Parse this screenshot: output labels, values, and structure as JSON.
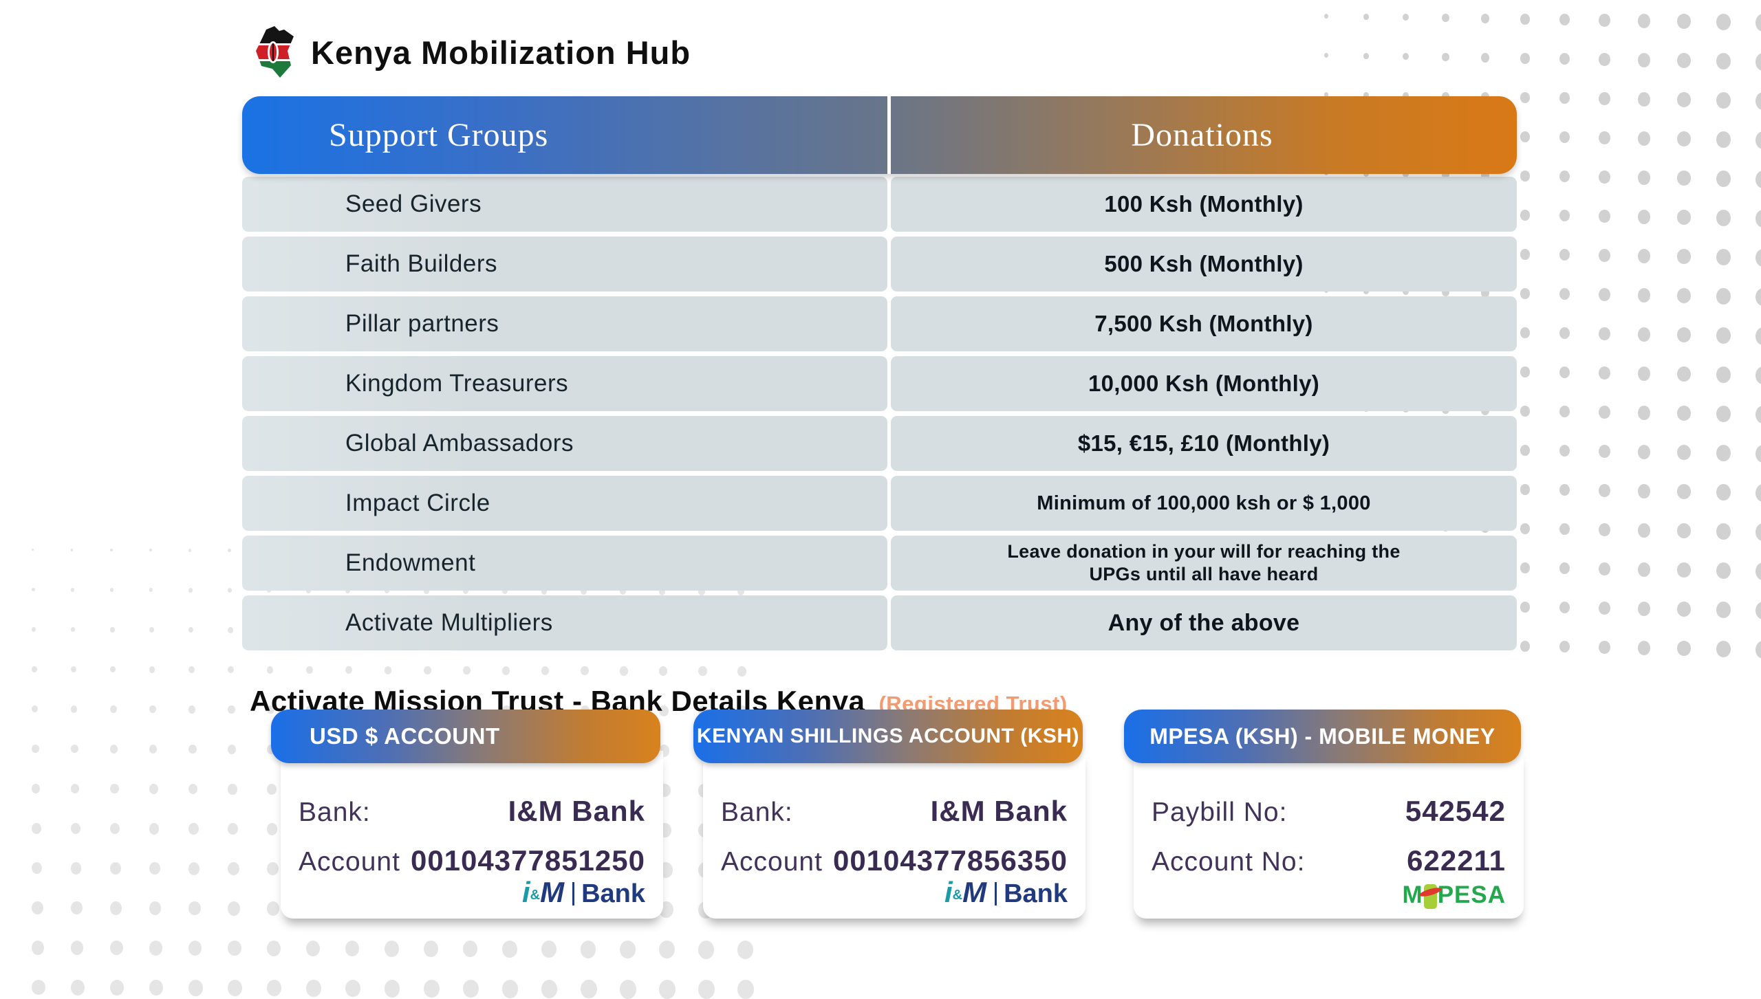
{
  "brand": {
    "title": "Kenya Mobilization Hub",
    "icon": "kenya-map-flag-icon"
  },
  "table": {
    "col_support": "Support Groups",
    "col_donations": "Donations",
    "rows": [
      {
        "group": "Seed Givers",
        "donation": "100 Ksh (Monthly)"
      },
      {
        "group": "Faith Builders",
        "donation": "500 Ksh (Monthly)"
      },
      {
        "group": "Pillar partners",
        "donation": "7,500 Ksh (Monthly)"
      },
      {
        "group": "Kingdom Treasurers",
        "donation": "10,000 Ksh (Monthly)"
      },
      {
        "group": "Global Ambassadors",
        "donation": "$15, €15, £10 (Monthly)"
      },
      {
        "group": "Impact Circle",
        "donation": "Minimum of 100,000 ksh or $ 1,000"
      },
      {
        "group": "Endowment",
        "donation": "Leave donation in your will for reaching the",
        "donation2": "UPGs until all have heard"
      },
      {
        "group": "Activate Multipliers",
        "donation": "Any of the above"
      }
    ]
  },
  "bank_section": {
    "title": "Activate Mission Trust  - Bank Details Kenya",
    "badge": "(Registered Trust)",
    "cards": [
      {
        "header": "USD $ ACCOUNT",
        "rows": [
          {
            "label": "Bank:",
            "value": "I&M Bank"
          },
          {
            "label": "Account",
            "value": "00104377851250"
          }
        ],
        "logo": "im-bank-logo"
      },
      {
        "header": "KENYAN SHILLINGS ACCOUNT (KSH)",
        "rows": [
          {
            "label": "Bank:",
            "value": "I&M Bank"
          },
          {
            "label": "Account",
            "value": "00104377856350"
          }
        ],
        "logo": "im-bank-logo"
      },
      {
        "header": "MPESA (KSH) - MOBILE MONEY",
        "rows": [
          {
            "label": "Paybill No:",
            "value": "542542"
          },
          {
            "label": "Account No:",
            "value": "622211"
          }
        ],
        "logo": "mpesa-logo"
      }
    ],
    "im_logo": {
      "i": "i",
      "amp": "&",
      "m": "M",
      "bank": "Bank"
    },
    "mpesa_logo": {
      "m": "M",
      "pesa": "PESA"
    }
  },
  "colors": {
    "header_gradient_blue": "#1a72e4",
    "header_gradient_slate": "#68758a",
    "header_gradient_orange": "#d97916",
    "row_background": "#d7dee1",
    "badge_orange": "#f29b72",
    "card_text_purple": "#3a2b52",
    "im_teal": "#1d9aa8",
    "im_navy": "#203a7d",
    "mpesa_green": "#23a84d",
    "mpesa_red": "#e03a2f",
    "dot_gray_dark": "#d1d1d1",
    "dot_gray_light": "#e5e5e5"
  }
}
